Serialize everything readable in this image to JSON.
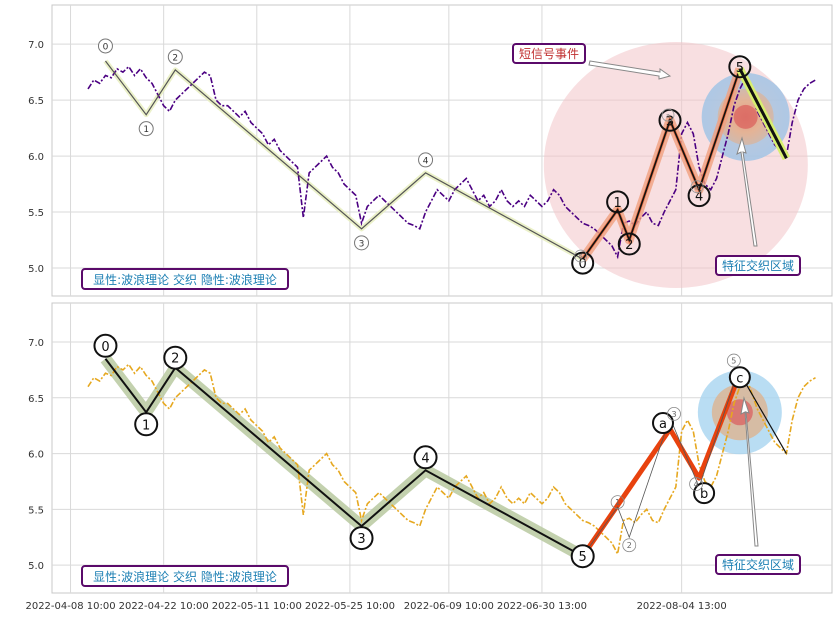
{
  "chart_data": [
    {
      "type": "line",
      "panel": "top",
      "ylim": [
        4.75,
        7.35
      ],
      "yticks": [
        5.0,
        5.5,
        6.0,
        6.5,
        7.0
      ],
      "ytick_labels": [
        "5.0",
        "5.5",
        "6.0",
        "6.5",
        "7.0"
      ],
      "grid": true,
      "price_color": "#4b0082",
      "price": [
        6.6,
        6.68,
        6.65,
        6.72,
        6.7,
        6.78,
        6.75,
        6.8,
        6.72,
        6.78,
        6.7,
        6.65,
        6.55,
        6.45,
        6.4,
        6.5,
        6.55,
        6.6,
        6.65,
        6.7,
        6.75,
        6.72,
        6.5,
        6.45,
        6.45,
        6.4,
        6.35,
        6.4,
        6.3,
        6.25,
        6.2,
        6.1,
        6.15,
        6.05,
        6.0,
        5.95,
        5.9,
        5.45,
        5.85,
        5.9,
        5.95,
        6.0,
        5.9,
        5.85,
        5.75,
        5.7,
        5.65,
        5.4,
        5.55,
        5.6,
        5.65,
        5.6,
        5.55,
        5.5,
        5.45,
        5.4,
        5.38,
        5.35,
        5.5,
        5.6,
        5.7,
        5.65,
        5.6,
        5.7,
        5.75,
        5.8,
        5.7,
        5.6,
        5.65,
        5.55,
        5.6,
        5.7,
        5.6,
        5.55,
        5.6,
        5.55,
        5.65,
        5.6,
        5.55,
        5.6,
        5.7,
        5.65,
        5.55,
        5.5,
        5.45,
        5.4,
        5.38,
        5.35,
        5.3,
        5.25,
        5.2,
        5.1,
        5.4,
        5.42,
        5.38,
        5.45,
        5.5,
        5.4,
        5.38,
        5.5,
        5.6,
        5.7,
        6.2,
        6.3,
        6.2,
        5.9,
        5.75,
        5.7,
        5.8,
        6.0,
        6.2,
        6.45,
        6.6,
        6.7,
        6.55,
        6.4,
        6.3,
        6.2,
        6.1,
        6.05,
        6.0,
        6.3,
        6.5,
        6.6,
        6.65,
        6.68
      ],
      "wave_points": [
        {
          "label": "0",
          "x": 3,
          "y": 6.85
        },
        {
          "label": "1",
          "x": 10,
          "y": 6.37
        },
        {
          "label": "2",
          "x": 15,
          "y": 6.77
        },
        {
          "label": "3",
          "x": 47,
          "y": 5.35
        },
        {
          "label": "4",
          "x": 58,
          "y": 5.85
        },
        {
          "label": "5",
          "x": 85,
          "y": 5.08
        }
      ],
      "sub_wave_points": [
        {
          "label": "0",
          "x": 85,
          "y": 5.08
        },
        {
          "label": "1",
          "x": 91,
          "y": 5.52
        },
        {
          "label": "2",
          "x": 93,
          "y": 5.25
        },
        {
          "label": "3",
          "x": 100,
          "y": 6.32
        },
        {
          "label": "4",
          "x": 105,
          "y": 5.7
        },
        {
          "label": "5",
          "x": 112,
          "y": 6.78
        }
      ],
      "short_signal": {
        "label": "短信号事件",
        "from": [
          112,
          6.78
        ],
        "to": [
          120,
          5.98
        ]
      },
      "legend": "显性:波浪理论 交织 隐性:波浪理论",
      "zone_label": "特征交织区域"
    },
    {
      "type": "line",
      "panel": "bottom",
      "ylim": [
        4.75,
        7.35
      ],
      "yticks": [
        5.0,
        5.5,
        6.0,
        6.5,
        7.0
      ],
      "ytick_labels": [
        "5.0",
        "5.5",
        "6.0",
        "6.5",
        "7.0"
      ],
      "grid": true,
      "price_color": "#e6a820",
      "wave_points": [
        {
          "label": "0",
          "x": 3,
          "y": 6.85
        },
        {
          "label": "1",
          "x": 10,
          "y": 6.37
        },
        {
          "label": "2",
          "x": 15,
          "y": 6.77
        },
        {
          "label": "3",
          "x": 47,
          "y": 5.35
        },
        {
          "label": "4",
          "x": 58,
          "y": 5.85
        },
        {
          "label": "5",
          "x": 85,
          "y": 5.08
        }
      ],
      "abc_points": [
        {
          "label": "a",
          "x": 100,
          "y": 6.22
        },
        {
          "label": "b",
          "x": 105,
          "y": 5.78
        },
        {
          "label": "c",
          "x": 112,
          "y": 6.72
        }
      ],
      "small_wave_points": [
        {
          "label": "1",
          "x": 91,
          "y": 5.52
        },
        {
          "label": "2",
          "x": 93,
          "y": 5.25
        },
        {
          "label": "3",
          "x": 100,
          "y": 6.32
        },
        {
          "label": "4",
          "x": 105,
          "y": 5.7
        },
        {
          "label": "5",
          "x": 112,
          "y": 6.78
        }
      ],
      "legend": "显性:波浪理论 交织 隐性:波浪理论",
      "zone_label": "特征交织区域"
    }
  ],
  "x_tick_labels": [
    {
      "x": -3,
      "label": "2022-04-08 10:00"
    },
    {
      "x": 13,
      "label": "2022-04-22 10:00"
    },
    {
      "x": 29,
      "label": "2022-05-11 10:00"
    },
    {
      "x": 45,
      "label": "2022-05-25 10:00"
    },
    {
      "x": 62,
      "label": "2022-06-09 10:00"
    },
    {
      "x": 78,
      "label": "2022-06-30 13:00"
    },
    {
      "x": 102,
      "label": "2022-08-04 13:00"
    }
  ]
}
